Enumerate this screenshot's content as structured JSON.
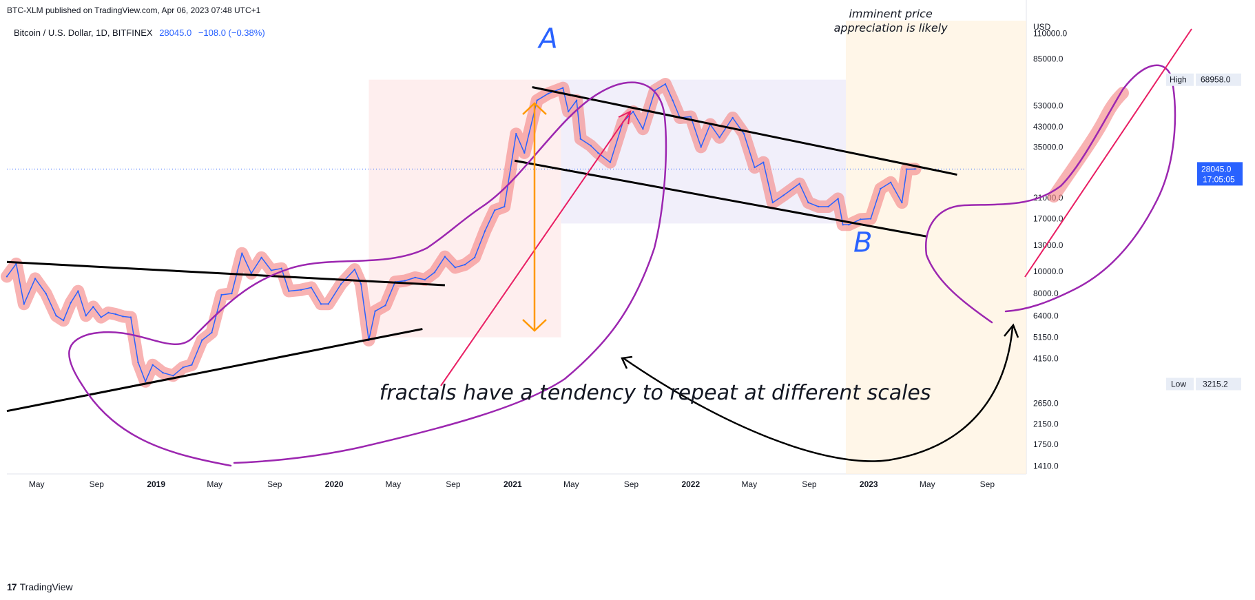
{
  "header": {
    "publisher": "BTC-XLM published on TradingView.com, Apr 06, 2023 07:48 UTC+1",
    "symbol": "Bitcoin / U.S. Dollar, 1D, BITFINEX",
    "last_price": "28045.0",
    "change": "−108.0 (−0.38%)"
  },
  "brand": {
    "logo": "17",
    "name": "TradingView"
  },
  "colors": {
    "price_line": "#2962ff",
    "trend_line": "#000000",
    "outline": "#9c27b0",
    "highlight": "#f48a8a",
    "red_arrow": "#e91e63",
    "orange_arrow": "#ff9800",
    "annotation_blue": "#2962ff",
    "zone_pink": "#fde8e8",
    "zone_lavender": "#eceaf8",
    "zone_orange": "#fff3e0"
  },
  "chart_data": {
    "type": "line",
    "title": "Bitcoin / U.S. Dollar, 1D, BITFINEX",
    "scale": "log",
    "currency": "USD",
    "ylim": [
      1300,
      125000
    ],
    "xlim": [
      "2018-03-01",
      "2023-11-20"
    ],
    "x_ticks": [
      "May",
      "Sep",
      "2019",
      "May",
      "Sep",
      "2020",
      "May",
      "Sep",
      "2021",
      "May",
      "Sep",
      "2022",
      "May",
      "Sep",
      "2023",
      "May",
      "Sep"
    ],
    "x_tick_dates": [
      "2018-05-01",
      "2018-09-01",
      "2019-01-01",
      "2019-05-01",
      "2019-09-01",
      "2020-01-01",
      "2020-05-01",
      "2020-09-01",
      "2021-01-01",
      "2021-05-01",
      "2021-09-01",
      "2022-01-01",
      "2022-05-01",
      "2022-09-01",
      "2023-01-01",
      "2023-05-01",
      "2023-09-01"
    ],
    "year_ticks": [
      "2019",
      "2020",
      "2021",
      "2022",
      "2023"
    ],
    "y_ticks": [
      "110000.0",
      "85000.0",
      "53000.0",
      "43000.0",
      "35000.0",
      "21000.0",
      "17000.0",
      "13000.0",
      "10000.0",
      "8000.0",
      "6400.0",
      "5150.0",
      "4150.0",
      "2650.0",
      "2150.0",
      "1750.0",
      "1410.0"
    ],
    "y_tick_values": [
      110000,
      85000,
      53000,
      43000,
      35000,
      21000,
      17000,
      13000,
      10000,
      8000,
      6400,
      5150,
      4150,
      2650,
      2150,
      1750,
      1410
    ],
    "price_dates": [
      "2018-03-01",
      "2018-03-20",
      "2018-04-05",
      "2018-04-28",
      "2018-05-20",
      "2018-06-10",
      "2018-06-25",
      "2018-07-10",
      "2018-07-25",
      "2018-08-10",
      "2018-08-25",
      "2018-09-10",
      "2018-09-25",
      "2018-10-10",
      "2018-10-25",
      "2018-11-10",
      "2018-11-25",
      "2018-12-10",
      "2018-12-25",
      "2019-01-15",
      "2019-02-05",
      "2019-02-25",
      "2019-03-15",
      "2019-04-05",
      "2019-04-25",
      "2019-05-15",
      "2019-06-05",
      "2019-06-26",
      "2019-07-15",
      "2019-08-05",
      "2019-08-25",
      "2019-09-15",
      "2019-09-30",
      "2019-10-25",
      "2019-11-15",
      "2019-12-05",
      "2019-12-20",
      "2020-01-15",
      "2020-02-12",
      "2020-02-25",
      "2020-03-12",
      "2020-03-25",
      "2020-04-15",
      "2020-05-05",
      "2020-05-25",
      "2020-06-15",
      "2020-07-05",
      "2020-07-25",
      "2020-08-15",
      "2020-09-05",
      "2020-09-25",
      "2020-10-15",
      "2020-11-05",
      "2020-11-25",
      "2020-12-15",
      "2021-01-08",
      "2021-01-25",
      "2021-02-20",
      "2021-03-15",
      "2021-04-14",
      "2021-04-25",
      "2021-05-12",
      "2021-05-20",
      "2021-06-10",
      "2021-06-25",
      "2021-07-20",
      "2021-08-15",
      "2021-09-05",
      "2021-09-25",
      "2021-10-20",
      "2021-11-10",
      "2021-11-25",
      "2021-12-10",
      "2022-01-01",
      "2022-01-22",
      "2022-02-10",
      "2022-03-01",
      "2022-03-28",
      "2022-04-20",
      "2022-05-12",
      "2022-05-30",
      "2022-06-18",
      "2022-07-10",
      "2022-08-12",
      "2022-08-30",
      "2022-09-20",
      "2022-10-10",
      "2022-10-30",
      "2022-11-09",
      "2022-11-21",
      "2022-12-15",
      "2023-01-05",
      "2023-01-25",
      "2023-02-15",
      "2023-03-10",
      "2023-03-20",
      "2023-04-06"
    ],
    "price_values": [
      9500,
      10800,
      7200,
      9300,
      8000,
      6400,
      6100,
      7300,
      8200,
      6400,
      7000,
      6300,
      6600,
      6500,
      6350,
      6300,
      4000,
      3300,
      3900,
      3600,
      3500,
      3800,
      3900,
      5000,
      5400,
      7900,
      8000,
      12000,
      9800,
      11500,
      10100,
      10300,
      8200,
      8300,
      8500,
      7200,
      7200,
      8800,
      10200,
      8800,
      5000,
      6700,
      7100,
      9000,
      9100,
      9400,
      9200,
      9900,
      11600,
      10400,
      10700,
      11500,
      15000,
      18500,
      19200,
      40000,
      33000,
      56000,
      60000,
      63500,
      50000,
      56000,
      38000,
      35500,
      33000,
      30000,
      45000,
      50000,
      42000,
      62000,
      66000,
      56000,
      47000,
      47500,
      35000,
      44000,
      38500,
      47000,
      40000,
      28500,
      30000,
      20000,
      21500,
      24200,
      20000,
      19200,
      19200,
      20800,
      16000,
      16000,
      16900,
      17000,
      23000,
      24500,
      20000,
      28000,
      28045
    ],
    "series": [
      {
        "name": "BTC/USD",
        "values": "price_values"
      }
    ],
    "price_line_label": {
      "value": "28045.0",
      "timer": "17:05:05"
    },
    "high_label": {
      "text": "High",
      "value": "68958.0",
      "num": 68958
    },
    "low_label": {
      "text": "Low",
      "value": "3215.2",
      "num": 3215.2
    },
    "trend_lines": [
      {
        "from": [
          "2018-03-01",
          11000
        ],
        "to": [
          "2020-08-15",
          8700
        ]
      },
      {
        "from": [
          "2018-03-01",
          2450
        ],
        "to": [
          "2020-06-30",
          5600
        ]
      },
      {
        "from": [
          "2021-02-10",
          64000
        ],
        "to": [
          "2023-07-01",
          26500
        ]
      },
      {
        "from": [
          "2021-01-05",
          30500
        ],
        "to": [
          "2023-05-01",
          14200
        ]
      }
    ],
    "zones": [
      {
        "from": [
          "2020-03-12",
          5150
        ],
        "to": [
          "2021-04-10",
          69000
        ],
        "color": "pink"
      },
      {
        "from": [
          "2021-04-10",
          16200
        ],
        "to": [
          "2022-11-15",
          69000
        ],
        "color": "lavender"
      },
      {
        "from": [
          "2022-11-15",
          1300
        ],
        "to": [
          "2023-11-20",
          125000
        ],
        "color": "orange"
      }
    ],
    "annotations": [
      {
        "id": "label-a",
        "text": "A",
        "at": [
          "2021-03-15",
          95000
        ]
      },
      {
        "id": "label-b",
        "text": "B",
        "at": [
          "2022-12-20",
          12200
        ]
      },
      {
        "id": "caption",
        "text": "fractals have a tendency to repeat at different scales",
        "at": [
          "2021-10-20",
          2750
        ]
      },
      {
        "id": "cut-text-1",
        "text": "imminent price",
        "at": [
          "2023-02-15",
          129000
        ]
      },
      {
        "id": "cut-text-2",
        "text": "appreciation is likely",
        "at": [
          "2023-02-15",
          112000
        ]
      }
    ]
  }
}
